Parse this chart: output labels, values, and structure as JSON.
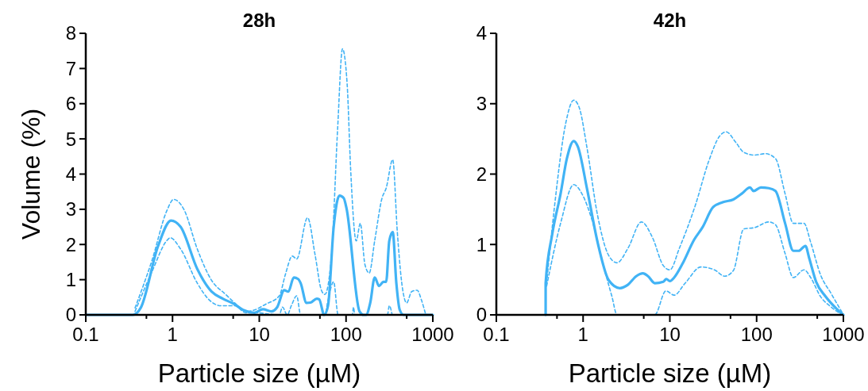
{
  "chart_data": [
    {
      "type": "line",
      "title": "28h",
      "xlabel": "Particle size (µM)",
      "ylabel": "Volume (%)",
      "log": "x",
      "grid": false,
      "marker": "none",
      "xlim": [
        0.1,
        1000
      ],
      "xticks": [
        0.1,
        {
          "value": 0.5,
          "label": null
        },
        1,
        {
          "value": 5,
          "label": null
        },
        10,
        {
          "value": 50,
          "label": null
        },
        100,
        {
          "value": 500,
          "label": null
        },
        1000
      ],
      "ylim": [
        0,
        8
      ],
      "yticks": [
        0,
        1,
        2,
        3,
        4,
        5,
        6,
        7,
        8
      ],
      "series": [
        {
          "color": "#41b3f5",
          "line_style": "solid",
          "x": [
            0.1,
            0.35,
            0.43,
            0.68,
            0.96,
            1.24,
            1.93,
            2.82,
            3.8,
            5.2,
            6.5,
            8.8,
            11,
            13.8,
            16.1,
            19.4,
            21.6,
            25,
            28,
            30,
            35,
            39,
            46,
            49,
            56,
            62,
            72,
            84,
            94,
            101,
            143,
            160,
            170,
            190,
            214,
            240,
            270,
            290,
            315,
            345,
            380,
            416,
            460,
            1000
          ],
          "values": [
            0,
            0,
            0.2,
            1.95,
            2.68,
            2.5,
            1.3,
            0.66,
            0.46,
            0.3,
            0.14,
            0.06,
            0.16,
            0.1,
            0.22,
            0.7,
            0.66,
            1.06,
            1.02,
            0.9,
            0.34,
            0.35,
            0.46,
            0.44,
            0,
            0.26,
            2.5,
            3.39,
            3.32,
            3.04,
            0.1,
            0,
            0,
            0.34,
            1.06,
            0.82,
            0.94,
            0.94,
            2.1,
            2.35,
            0.9,
            0.14,
            0,
            0
          ]
        },
        {
          "type": "line",
          "color": "#41b3f5",
          "line_style": "dashed",
          "x": [
            0.37,
            0.58,
            0.86,
            1.03,
            1.35,
            1.93,
            2.82,
            4.1,
            5.2,
            7,
            8.8,
            11.8,
            17,
            20,
            24,
            27,
            36,
            44,
            52,
            57,
            68,
            80,
            91,
            103,
            113,
            131,
            146,
            165,
            185,
            214,
            260,
            290,
            345,
            390,
            435,
            500,
            570,
            660,
            740,
            830
          ],
          "values": [
            0.2,
            1.55,
            2.96,
            3.28,
            3.0,
            1.87,
            0.98,
            0.58,
            0.34,
            0.1,
            0.14,
            0.3,
            0.54,
            1.15,
            1.67,
            1.59,
            2.76,
            1.7,
            0.7,
            0.58,
            1.7,
            5.3,
            7.56,
            6.55,
            4.13,
            2.1,
            2.6,
            1.43,
            1.19,
            2.11,
            3.32,
            3.6,
            4.41,
            2.35,
            0.98,
            0.34,
            0.66,
            0.7,
            0.42,
            0
          ]
        },
        {
          "type": "line",
          "color": "#41b3f5",
          "line_style": "dashed",
          "x": [
            0.37,
            0.58,
            0.86,
            0.94,
            1.24,
            1.93,
            2.66,
            3.6,
            5.2,
            7,
            8.8,
            17,
            18.5,
            21,
            23.4,
            27,
            30,
            57,
            62,
            72,
            81,
            118,
            122,
            126,
            300,
            315,
            340
          ],
          "values": [
            0.1,
            1.23,
            2.11,
            2.19,
            1.87,
            0.9,
            0.42,
            0.26,
            0.26,
            0.06,
            0.06,
            0,
            0.22,
            0,
            0.26,
            0.54,
            0,
            0,
            0.42,
            0.94,
            0,
            0,
            0.22,
            0,
            0,
            0.26,
            0
          ]
        }
      ]
    },
    {
      "type": "line",
      "title": "42h",
      "xlabel": "Particle size (µM)",
      "log": "x",
      "grid": false,
      "marker": "none",
      "xlim": [
        0.1,
        1000
      ],
      "xticks": [
        0.1,
        {
          "value": 0.5,
          "label": null
        },
        1,
        {
          "value": 5,
          "label": null
        },
        10,
        {
          "value": 50,
          "label": null
        },
        100,
        {
          "value": 500,
          "label": null
        },
        1000
      ],
      "ylim": [
        0,
        4
      ],
      "yticks": [
        0,
        1,
        2,
        3,
        4
      ],
      "series": [
        {
          "color": "#41b3f5",
          "line_style": "solid",
          "x": [
            0.37,
            0.37,
            0.44,
            0.55,
            0.65,
            0.78,
            0.87,
            1.11,
            1.47,
            1.98,
            2.65,
            3.3,
            4.1,
            4.9,
            5.6,
            6.7,
            8.4,
            9.1,
            10,
            11.2,
            13.9,
            19.1,
            23.7,
            31.5,
            40.6,
            54,
            67,
            84,
            92,
            112,
            138,
            165,
            213,
            265,
            305,
            365,
            405,
            485,
            625,
            830,
            1000
          ],
          "values": [
            0,
            0.45,
            1.14,
            1.72,
            2.22,
            2.47,
            2.39,
            1.79,
            1.03,
            0.49,
            0.38,
            0.43,
            0.55,
            0.59,
            0.55,
            0.45,
            0.47,
            0.51,
            0.48,
            0.53,
            0.72,
            1.07,
            1.24,
            1.53,
            1.6,
            1.64,
            1.72,
            1.81,
            1.76,
            1.81,
            1.8,
            1.76,
            1.3,
            0.91,
            0.91,
            0.98,
            0.8,
            0.47,
            0.26,
            0.09,
            0
          ]
        },
        {
          "type": "line",
          "color": "#41b3f5",
          "line_style": "dashed",
          "x": [
            0.38,
            0.47,
            0.63,
            0.78,
            0.9,
            1.11,
            1.47,
            1.98,
            2.46,
            3.3,
            4.7,
            6.3,
            8.4,
            10,
            12.9,
            19.7,
            28,
            37.5,
            44.6,
            57.6,
            71,
            95,
            126,
            165,
            213,
            265,
            352,
            420,
            545,
            725,
            970
          ],
          "values": [
            0.45,
            1.56,
            2.72,
            3.05,
            2.95,
            2.37,
            1.41,
            0.84,
            0.74,
            0.95,
            1.32,
            1.1,
            0.7,
            0.64,
            0.95,
            1.56,
            2.18,
            2.54,
            2.6,
            2.45,
            2.31,
            2.27,
            2.29,
            2.22,
            1.72,
            1.3,
            1.3,
            1.03,
            0.57,
            0.3,
            0.03
          ]
        },
        {
          "type": "line",
          "color": "#41b3f5",
          "line_style": "dashed",
          "x": [
            0.38,
            0.55,
            0.78,
            0.97,
            1.3,
            1.73,
            2.15,
            2.46,
            6.7,
            9,
            11.2,
            15,
            22.8,
            32.6,
            43,
            54,
            71,
            95,
            138,
            165,
            213,
            265,
            352,
            420,
            545,
            725,
            970
          ],
          "values": [
            0.41,
            1.3,
            1.85,
            1.72,
            1.3,
            0.68,
            0.26,
            0,
            0,
            0.34,
            0.28,
            0.45,
            0.68,
            0.64,
            0.55,
            0.63,
            1.22,
            1.24,
            1.32,
            1.28,
            0.87,
            0.53,
            0.64,
            0.53,
            0.26,
            0.11,
            0
          ]
        }
      ]
    }
  ]
}
